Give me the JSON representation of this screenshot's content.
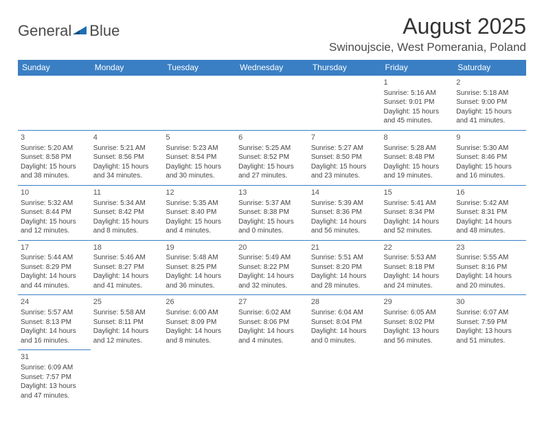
{
  "logo": {
    "text1": "General",
    "text2": "Blue",
    "icon_color": "#1f6db3"
  },
  "title": "August 2025",
  "location": "Swinoujscie, West Pomerania, Poland",
  "colors": {
    "header_bg": "#3a7fc4",
    "header_text": "#ffffff",
    "border": "#3a7fc4",
    "text": "#444444"
  },
  "day_headers": [
    "Sunday",
    "Monday",
    "Tuesday",
    "Wednesday",
    "Thursday",
    "Friday",
    "Saturday"
  ],
  "weeks": [
    [
      null,
      null,
      null,
      null,
      null,
      {
        "n": "1",
        "sunrise": "5:16 AM",
        "sunset": "9:01 PM",
        "daylight": "15 hours and 45 minutes."
      },
      {
        "n": "2",
        "sunrise": "5:18 AM",
        "sunset": "9:00 PM",
        "daylight": "15 hours and 41 minutes."
      }
    ],
    [
      {
        "n": "3",
        "sunrise": "5:20 AM",
        "sunset": "8:58 PM",
        "daylight": "15 hours and 38 minutes."
      },
      {
        "n": "4",
        "sunrise": "5:21 AM",
        "sunset": "8:56 PM",
        "daylight": "15 hours and 34 minutes."
      },
      {
        "n": "5",
        "sunrise": "5:23 AM",
        "sunset": "8:54 PM",
        "daylight": "15 hours and 30 minutes."
      },
      {
        "n": "6",
        "sunrise": "5:25 AM",
        "sunset": "8:52 PM",
        "daylight": "15 hours and 27 minutes."
      },
      {
        "n": "7",
        "sunrise": "5:27 AM",
        "sunset": "8:50 PM",
        "daylight": "15 hours and 23 minutes."
      },
      {
        "n": "8",
        "sunrise": "5:28 AM",
        "sunset": "8:48 PM",
        "daylight": "15 hours and 19 minutes."
      },
      {
        "n": "9",
        "sunrise": "5:30 AM",
        "sunset": "8:46 PM",
        "daylight": "15 hours and 16 minutes."
      }
    ],
    [
      {
        "n": "10",
        "sunrise": "5:32 AM",
        "sunset": "8:44 PM",
        "daylight": "15 hours and 12 minutes."
      },
      {
        "n": "11",
        "sunrise": "5:34 AM",
        "sunset": "8:42 PM",
        "daylight": "15 hours and 8 minutes."
      },
      {
        "n": "12",
        "sunrise": "5:35 AM",
        "sunset": "8:40 PM",
        "daylight": "15 hours and 4 minutes."
      },
      {
        "n": "13",
        "sunrise": "5:37 AM",
        "sunset": "8:38 PM",
        "daylight": "15 hours and 0 minutes."
      },
      {
        "n": "14",
        "sunrise": "5:39 AM",
        "sunset": "8:36 PM",
        "daylight": "14 hours and 56 minutes."
      },
      {
        "n": "15",
        "sunrise": "5:41 AM",
        "sunset": "8:34 PM",
        "daylight": "14 hours and 52 minutes."
      },
      {
        "n": "16",
        "sunrise": "5:42 AM",
        "sunset": "8:31 PM",
        "daylight": "14 hours and 48 minutes."
      }
    ],
    [
      {
        "n": "17",
        "sunrise": "5:44 AM",
        "sunset": "8:29 PM",
        "daylight": "14 hours and 44 minutes."
      },
      {
        "n": "18",
        "sunrise": "5:46 AM",
        "sunset": "8:27 PM",
        "daylight": "14 hours and 41 minutes."
      },
      {
        "n": "19",
        "sunrise": "5:48 AM",
        "sunset": "8:25 PM",
        "daylight": "14 hours and 36 minutes."
      },
      {
        "n": "20",
        "sunrise": "5:49 AM",
        "sunset": "8:22 PM",
        "daylight": "14 hours and 32 minutes."
      },
      {
        "n": "21",
        "sunrise": "5:51 AM",
        "sunset": "8:20 PM",
        "daylight": "14 hours and 28 minutes."
      },
      {
        "n": "22",
        "sunrise": "5:53 AM",
        "sunset": "8:18 PM",
        "daylight": "14 hours and 24 minutes."
      },
      {
        "n": "23",
        "sunrise": "5:55 AM",
        "sunset": "8:16 PM",
        "daylight": "14 hours and 20 minutes."
      }
    ],
    [
      {
        "n": "24",
        "sunrise": "5:57 AM",
        "sunset": "8:13 PM",
        "daylight": "14 hours and 16 minutes."
      },
      {
        "n": "25",
        "sunrise": "5:58 AM",
        "sunset": "8:11 PM",
        "daylight": "14 hours and 12 minutes."
      },
      {
        "n": "26",
        "sunrise": "6:00 AM",
        "sunset": "8:09 PM",
        "daylight": "14 hours and 8 minutes."
      },
      {
        "n": "27",
        "sunrise": "6:02 AM",
        "sunset": "8:06 PM",
        "daylight": "14 hours and 4 minutes."
      },
      {
        "n": "28",
        "sunrise": "6:04 AM",
        "sunset": "8:04 PM",
        "daylight": "14 hours and 0 minutes."
      },
      {
        "n": "29",
        "sunrise": "6:05 AM",
        "sunset": "8:02 PM",
        "daylight": "13 hours and 56 minutes."
      },
      {
        "n": "30",
        "sunrise": "6:07 AM",
        "sunset": "7:59 PM",
        "daylight": "13 hours and 51 minutes."
      }
    ],
    [
      {
        "n": "31",
        "sunrise": "6:09 AM",
        "sunset": "7:57 PM",
        "daylight": "13 hours and 47 minutes."
      },
      null,
      null,
      null,
      null,
      null,
      null
    ]
  ],
  "labels": {
    "sunrise": "Sunrise:",
    "sunset": "Sunset:",
    "daylight": "Daylight:"
  }
}
